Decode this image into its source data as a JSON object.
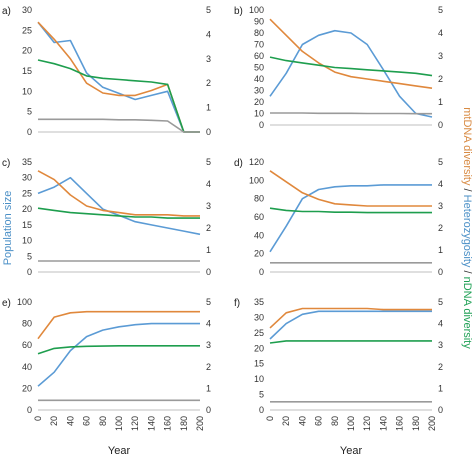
{
  "figure": {
    "left_axis_title": "Population size",
    "right_axis_title_parts": [
      {
        "text": "mtDNA diversity",
        "color": "#d88a42"
      },
      {
        "text": " / ",
        "color": "#333333"
      },
      {
        "text": "Heterozygosity",
        "color": "#4a8fc6"
      },
      {
        "text": " / ",
        "color": "#333333"
      },
      {
        "text": "nDNA diversity",
        "color": "#1fa055"
      }
    ],
    "colors": {
      "population": "#5b9bd5",
      "mtdna": "#e0883c",
      "heterozygosity": "#9a9a9a",
      "ndna": "#1e9e4e",
      "axis": "#bfbfbf"
    }
  },
  "chart_data": [
    {
      "panel": "a)",
      "type": "line",
      "x": [
        0,
        20,
        40,
        60,
        80,
        100,
        120,
        140,
        160,
        180,
        200
      ],
      "xlim": [
        0,
        200
      ],
      "ylim_left": [
        0,
        30
      ],
      "yticks_left": [
        0,
        5,
        10,
        15,
        20,
        25,
        30
      ],
      "ylim_right": [
        0,
        5
      ],
      "yticks_right": [
        0,
        1,
        2,
        3,
        4,
        5
      ],
      "series": [
        {
          "key": "population",
          "axis": "left",
          "values": [
            27,
            22,
            22.5,
            14.5,
            11,
            9.5,
            8,
            9,
            10,
            0,
            0
          ]
        },
        {
          "key": "mtdna",
          "axis": "right",
          "values": [
            4.5,
            3.8,
            3,
            2,
            1.6,
            1.5,
            1.5,
            1.7,
            1.95,
            0,
            0
          ]
        },
        {
          "key": "ndna",
          "axis": "right",
          "values": [
            2.95,
            2.8,
            2.6,
            2.3,
            2.2,
            2.15,
            2.1,
            2.05,
            1.95,
            0,
            0
          ]
        },
        {
          "key": "heterozygosity",
          "axis": "right",
          "values": [
            0.52,
            0.52,
            0.52,
            0.52,
            0.52,
            0.5,
            0.5,
            0.48,
            0.45,
            0,
            0
          ]
        }
      ],
      "show_x_ticks": false
    },
    {
      "panel": "b)",
      "type": "line",
      "x": [
        0,
        20,
        40,
        60,
        80,
        100,
        120,
        140,
        160,
        180,
        200
      ],
      "xlim": [
        0,
        200
      ],
      "ylim_left": [
        0,
        100
      ],
      "yticks_left": [
        0,
        10,
        20,
        30,
        40,
        50,
        60,
        70,
        80,
        90,
        100
      ],
      "ylim_right": [
        0,
        5
      ],
      "yticks_right": [
        0,
        1,
        2,
        3,
        4,
        5
      ],
      "series": [
        {
          "key": "population",
          "axis": "left",
          "values": [
            25,
            45,
            70,
            78,
            82,
            80,
            70,
            48,
            25,
            10,
            7
          ]
        },
        {
          "key": "mtdna",
          "axis": "right",
          "values": [
            4.6,
            3.9,
            3.2,
            2.7,
            2.3,
            2.1,
            2.0,
            1.9,
            1.8,
            1.7,
            1.6
          ]
        },
        {
          "key": "ndna",
          "axis": "right",
          "values": [
            2.95,
            2.8,
            2.7,
            2.6,
            2.5,
            2.45,
            2.4,
            2.35,
            2.3,
            2.25,
            2.15
          ]
        },
        {
          "key": "heterozygosity",
          "axis": "right",
          "values": [
            0.52,
            0.52,
            0.52,
            0.51,
            0.51,
            0.51,
            0.5,
            0.5,
            0.5,
            0.49,
            0.49
          ]
        }
      ],
      "show_x_ticks": false
    },
    {
      "panel": "c)",
      "type": "line",
      "x": [
        0,
        20,
        40,
        60,
        80,
        100,
        120,
        140,
        160,
        180,
        200
      ],
      "xlim": [
        0,
        200
      ],
      "ylim_left": [
        0,
        35
      ],
      "yticks_left": [
        0,
        5,
        10,
        15,
        20,
        25,
        30,
        35
      ],
      "ylim_right": [
        0,
        5
      ],
      "yticks_right": [
        0,
        1,
        2,
        3,
        4,
        5
      ],
      "series": [
        {
          "key": "population",
          "axis": "left",
          "values": [
            25,
            27,
            30,
            25,
            20,
            18,
            16,
            15,
            14,
            13,
            12
          ]
        },
        {
          "key": "mtdna",
          "axis": "right",
          "values": [
            4.6,
            4.2,
            3.5,
            3.0,
            2.8,
            2.7,
            2.6,
            2.6,
            2.6,
            2.55,
            2.55
          ]
        },
        {
          "key": "ndna",
          "axis": "right",
          "values": [
            2.9,
            2.8,
            2.7,
            2.65,
            2.6,
            2.55,
            2.5,
            2.5,
            2.45,
            2.45,
            2.45
          ]
        },
        {
          "key": "heterozygosity",
          "axis": "right",
          "values": [
            0.5,
            0.5,
            0.5,
            0.5,
            0.5,
            0.5,
            0.5,
            0.5,
            0.5,
            0.5,
            0.5
          ]
        }
      ],
      "show_x_ticks": false
    },
    {
      "panel": "d)",
      "type": "line",
      "x": [
        0,
        20,
        40,
        60,
        80,
        100,
        120,
        140,
        160,
        180,
        200
      ],
      "xlim": [
        0,
        200
      ],
      "ylim_left": [
        0,
        120
      ],
      "yticks_left": [
        0,
        20,
        40,
        60,
        80,
        100,
        120
      ],
      "ylim_right": [
        0,
        5
      ],
      "yticks_right": [
        0,
        1,
        2,
        3,
        4,
        5
      ],
      "series": [
        {
          "key": "population",
          "axis": "left",
          "values": [
            22,
            50,
            80,
            90,
            93,
            94,
            94,
            95,
            95,
            95,
            95
          ]
        },
        {
          "key": "mtdna",
          "axis": "right",
          "values": [
            4.6,
            4.1,
            3.6,
            3.3,
            3.1,
            3.05,
            3.0,
            3.0,
            3.0,
            3.0,
            3.0
          ]
        },
        {
          "key": "ndna",
          "axis": "right",
          "values": [
            2.9,
            2.8,
            2.75,
            2.75,
            2.72,
            2.72,
            2.7,
            2.7,
            2.7,
            2.7,
            2.7
          ]
        },
        {
          "key": "heterozygosity",
          "axis": "right",
          "values": [
            0.42,
            0.42,
            0.42,
            0.42,
            0.42,
            0.42,
            0.42,
            0.42,
            0.42,
            0.42,
            0.42
          ]
        }
      ],
      "show_x_ticks": false
    },
    {
      "panel": "e)",
      "type": "line",
      "x": [
        0,
        20,
        40,
        60,
        80,
        100,
        120,
        140,
        160,
        180,
        200
      ],
      "xlim": [
        0,
        200
      ],
      "ylim_left": [
        0,
        100
      ],
      "yticks_left": [
        0,
        20,
        40,
        60,
        80,
        100
      ],
      "ylim_right": [
        0,
        5
      ],
      "yticks_right": [
        0,
        1,
        2,
        3,
        4,
        5
      ],
      "series": [
        {
          "key": "population",
          "axis": "left",
          "values": [
            22,
            35,
            55,
            68,
            74,
            77,
            79,
            80,
            80,
            80,
            80
          ]
        },
        {
          "key": "mtdna",
          "axis": "right",
          "values": [
            3.3,
            4.3,
            4.5,
            4.55,
            4.55,
            4.55,
            4.55,
            4.55,
            4.55,
            4.55,
            4.55
          ]
        },
        {
          "key": "ndna",
          "axis": "right",
          "values": [
            2.6,
            2.85,
            2.92,
            2.95,
            2.96,
            2.97,
            2.97,
            2.97,
            2.97,
            2.97,
            2.97
          ]
        },
        {
          "key": "heterozygosity",
          "axis": "right",
          "values": [
            0.45,
            0.45,
            0.45,
            0.45,
            0.45,
            0.45,
            0.45,
            0.45,
            0.45,
            0.45,
            0.45
          ]
        }
      ],
      "show_x_ticks": true,
      "xticks": [
        0,
        20,
        40,
        60,
        80,
        100,
        120,
        140,
        160,
        180,
        200
      ],
      "xlabel": "Year"
    },
    {
      "panel": "f)",
      "type": "line",
      "x": [
        0,
        20,
        40,
        60,
        80,
        100,
        120,
        140,
        160,
        180,
        200
      ],
      "xlim": [
        0,
        200
      ],
      "ylim_left": [
        0,
        35
      ],
      "yticks_left": [
        0,
        5,
        10,
        15,
        20,
        25,
        30,
        35
      ],
      "ylim_right": [
        0,
        5
      ],
      "yticks_right": [
        0,
        1,
        2,
        3,
        4,
        5
      ],
      "series": [
        {
          "key": "population",
          "axis": "left",
          "values": [
            23,
            28,
            31,
            32,
            32,
            32,
            32,
            32,
            32,
            32,
            32
          ]
        },
        {
          "key": "mtdna",
          "axis": "right",
          "values": [
            3.8,
            4.5,
            4.7,
            4.7,
            4.7,
            4.7,
            4.7,
            4.65,
            4.65,
            4.65,
            4.65
          ]
        },
        {
          "key": "ndna",
          "axis": "right",
          "values": [
            3.1,
            3.2,
            3.2,
            3.2,
            3.2,
            3.2,
            3.2,
            3.2,
            3.2,
            3.2,
            3.2
          ]
        },
        {
          "key": "heterozygosity",
          "axis": "right",
          "values": [
            0.38,
            0.38,
            0.38,
            0.38,
            0.38,
            0.38,
            0.38,
            0.38,
            0.38,
            0.38,
            0.38
          ]
        }
      ],
      "show_x_ticks": true,
      "xticks": [
        0,
        20,
        40,
        60,
        80,
        100,
        120,
        140,
        160,
        180,
        200
      ],
      "xlabel": "Year"
    }
  ]
}
